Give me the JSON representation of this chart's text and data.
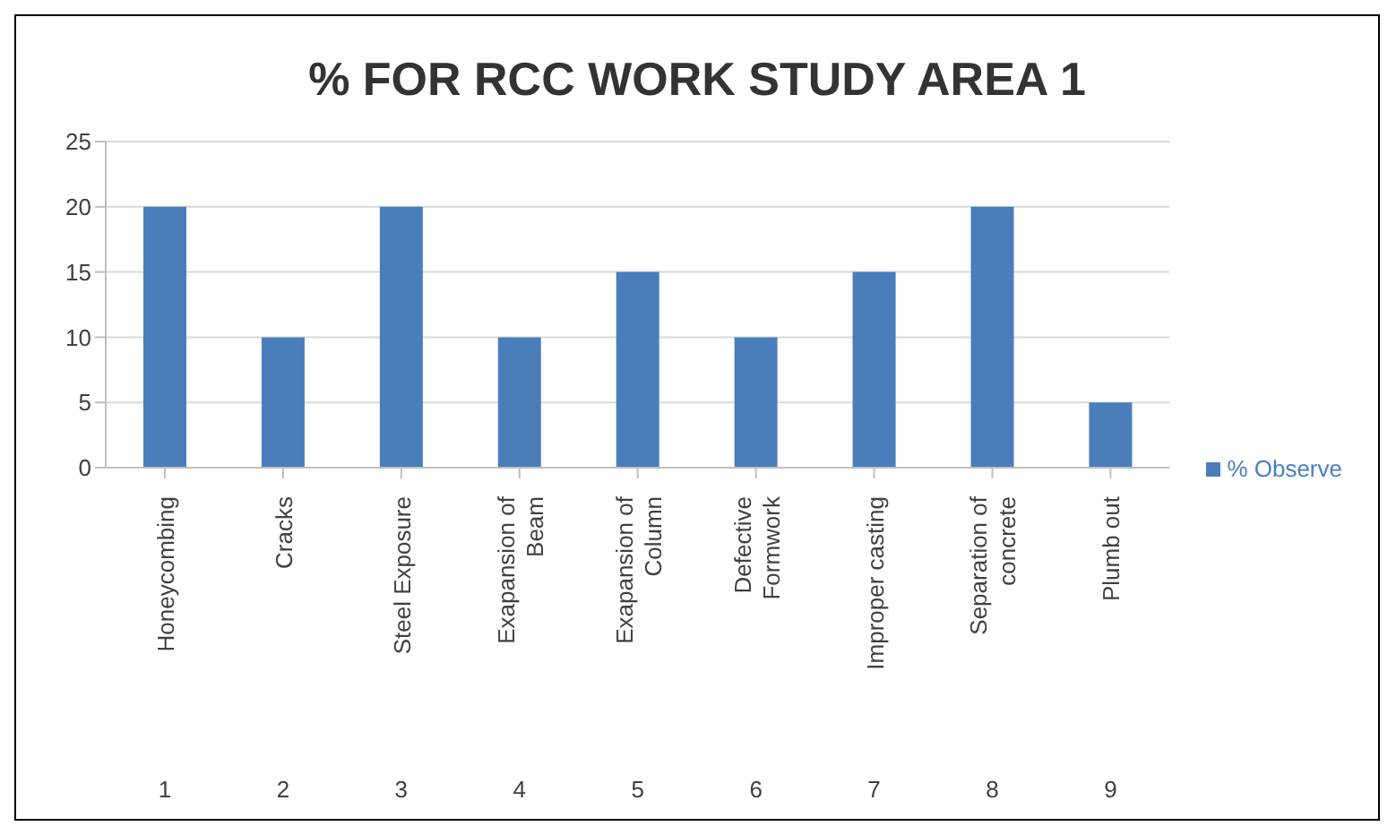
{
  "chart_data": {
    "type": "bar",
    "title": "% FOR RCC WORK STUDY AREA 1",
    "categories": [
      "Honeycombing",
      "Cracks",
      "Steel Exposure",
      "Exapansion of Beam",
      "Exapansion of Column",
      "Defective Formwork",
      "Improper casting",
      "Separation of concrete",
      "Plumb out"
    ],
    "series": [
      {
        "name": "% Observe",
        "color": "#4a7ebb",
        "values": [
          20,
          10,
          20,
          10,
          15,
          10,
          15,
          20,
          5
        ]
      }
    ],
    "annotations": [
      "1",
      "2",
      "3",
      "4",
      "5",
      "6",
      "7",
      "8",
      "9"
    ],
    "ylim": [
      0,
      25
    ],
    "yticks": [
      0,
      5,
      10,
      15,
      20,
      25
    ],
    "grid": "y",
    "legend": "right"
  }
}
